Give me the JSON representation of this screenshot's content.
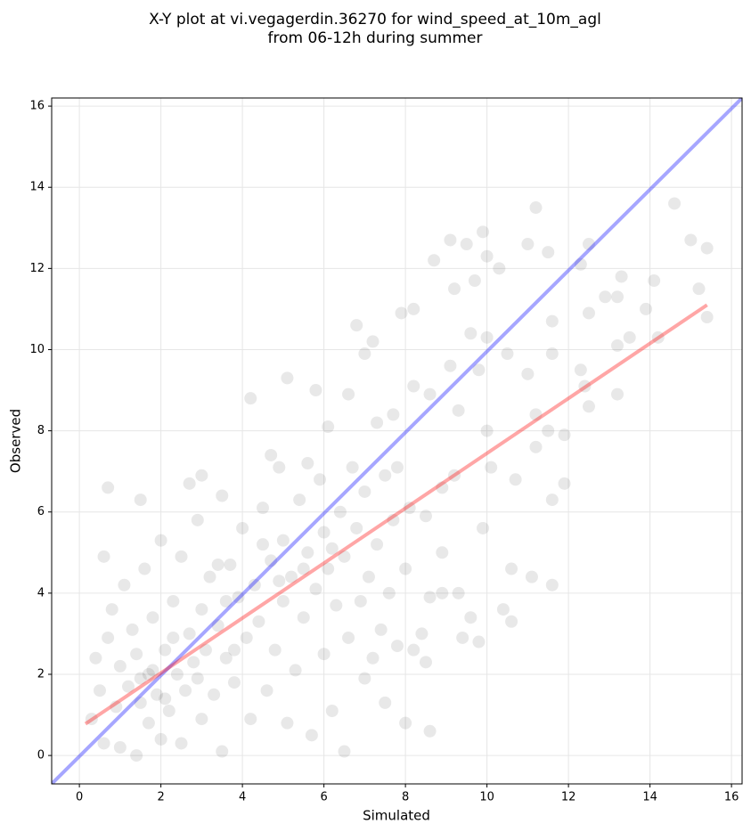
{
  "chart_data": {
    "type": "scatter",
    "title": [
      "X-Y plot at vi.vegagerdin.36270 for wind_speed_at_10m_agl",
      "from 06-12h during summer"
    ],
    "xlabel": "Simulated",
    "ylabel": "Observed",
    "xlim": [
      -0.68,
      16.26
    ],
    "ylim": [
      -0.7,
      16.2
    ],
    "xticks": [
      0,
      2,
      4,
      6,
      8,
      10,
      12,
      14,
      16
    ],
    "yticks": [
      0,
      2,
      4,
      6,
      8,
      10,
      12,
      14,
      16
    ],
    "grid": true,
    "point_color": "#000000",
    "point_alpha": 0.09,
    "x": [
      0.7,
      1.5,
      0.6,
      4.2,
      5.1,
      5.8,
      6.8,
      7.2,
      7.9,
      8.2,
      8.7,
      9.1,
      9.5,
      9.9,
      10.0,
      10.3,
      11.0,
      11.2,
      11.5,
      12.5,
      14.6,
      15.0,
      15.4,
      15.2,
      14.1,
      13.3,
      12.3,
      12.9,
      12.5,
      13.2,
      13.9,
      14.2,
      13.5,
      13.2,
      12.3,
      12.4,
      12.5,
      13.2,
      11.6,
      11.0,
      11.6,
      11.2,
      11.5,
      11.9,
      11.2,
      11.6,
      11.9,
      11.6,
      11.1,
      10.6,
      10.6,
      10.4,
      9.8,
      9.4,
      9.6,
      9.9,
      10.1,
      10.7,
      10.0,
      9.8,
      9.1,
      9.3,
      8.6,
      8.2,
      7.7,
      7.3,
      7.8,
      8.9,
      9.2,
      8.5,
      8.9,
      8.6,
      8.4,
      8.5,
      8.0,
      8.6,
      8.2,
      8.9,
      9.3,
      15.4,
      10.5,
      9.7,
      9.2,
      10.0,
      9.6,
      0.3,
      0.4,
      0.5,
      0.6,
      0.7,
      0.8,
      0.9,
      1.0,
      1.0,
      1.1,
      1.2,
      1.3,
      1.4,
      1.4,
      1.5,
      1.6,
      1.7,
      1.7,
      1.8,
      1.9,
      2.0,
      2.0,
      2.1,
      2.2,
      2.3,
      2.4,
      2.5,
      2.5,
      2.6,
      2.7,
      2.8,
      2.9,
      3.0,
      3.0,
      3.1,
      3.2,
      3.3,
      3.4,
      3.5,
      3.5,
      3.6,
      3.7,
      3.8,
      3.9,
      4.0,
      4.1,
      4.2,
      4.3,
      4.4,
      4.5,
      4.6,
      4.7,
      4.8,
      4.9,
      5.0,
      5.0,
      5.1,
      5.2,
      5.3,
      5.4,
      5.5,
      5.6,
      5.7,
      5.8,
      5.9,
      6.0,
      6.0,
      6.1,
      6.2,
      6.3,
      6.4,
      6.5,
      6.5,
      6.6,
      6.7,
      6.8,
      6.9,
      7.0,
      7.0,
      7.1,
      7.2,
      7.3,
      7.4,
      7.5,
      7.5,
      7.6,
      7.7,
      7.8,
      8.0,
      8.1,
      3.0,
      2.7,
      4.7,
      5.6,
      6.1,
      6.6,
      7.0,
      4.5,
      3.4,
      2.3,
      1.8,
      2.9,
      3.8,
      4.9,
      5.5,
      6.2,
      1.5,
      2.1,
      3.6
    ],
    "y": [
      6.6,
      6.3,
      4.9,
      8.8,
      9.3,
      9.0,
      10.6,
      10.2,
      10.9,
      11.0,
      12.2,
      12.7,
      12.6,
      12.9,
      12.3,
      12.0,
      12.6,
      13.5,
      12.4,
      12.6,
      13.6,
      12.7,
      12.5,
      11.5,
      11.7,
      11.8,
      12.1,
      11.3,
      10.9,
      11.3,
      11.0,
      10.3,
      10.3,
      10.1,
      9.5,
      9.1,
      8.6,
      8.9,
      10.7,
      9.4,
      9.9,
      8.4,
      8.0,
      7.9,
      7.6,
      6.3,
      6.7,
      4.2,
      4.4,
      4.6,
      3.3,
      3.6,
      2.8,
      2.9,
      3.4,
      5.6,
      7.1,
      6.8,
      8.0,
      9.5,
      9.6,
      8.5,
      8.9,
      9.1,
      8.4,
      8.2,
      7.1,
      6.6,
      6.9,
      5.9,
      5.0,
      3.9,
      3.0,
      2.3,
      0.8,
      0.6,
      2.6,
      4.0,
      4.0,
      10.8,
      9.9,
      11.7,
      11.5,
      10.3,
      10.4,
      0.9,
      2.4,
      1.6,
      0.3,
      2.9,
      3.6,
      1.2,
      0.2,
      2.2,
      4.2,
      1.7,
      3.1,
      0.0,
      2.5,
      1.3,
      4.6,
      0.8,
      2.0,
      3.4,
      1.5,
      5.3,
      0.4,
      2.6,
      1.1,
      3.8,
      2.0,
      4.9,
      0.3,
      1.6,
      3.0,
      2.3,
      5.8,
      0.9,
      3.6,
      2.6,
      4.4,
      1.5,
      3.2,
      6.4,
      0.1,
      2.4,
      4.7,
      1.8,
      3.9,
      5.6,
      2.9,
      0.9,
      4.2,
      3.3,
      6.1,
      1.6,
      4.8,
      2.6,
      7.1,
      3.8,
      5.3,
      0.8,
      4.4,
      2.1,
      6.3,
      3.4,
      5.0,
      0.5,
      4.1,
      6.8,
      2.5,
      5.5,
      4.6,
      1.1,
      3.7,
      6.0,
      0.1,
      4.9,
      2.9,
      7.1,
      5.6,
      3.8,
      1.9,
      6.5,
      4.4,
      2.4,
      5.2,
      3.1,
      1.3,
      6.9,
      4.0,
      5.8,
      2.7,
      4.6,
      6.1,
      6.9,
      6.7,
      7.4,
      7.2,
      8.1,
      8.9,
      9.9,
      5.2,
      4.7,
      2.9,
      2.1,
      1.9,
      2.6,
      4.3,
      4.6,
      5.1,
      1.9,
      1.4,
      3.8
    ],
    "lines": [
      {
        "color": "#0000ff",
        "alpha": 0.35,
        "x": [
          -0.68,
          16.26
        ],
        "y": [
          -0.7,
          16.2
        ]
      },
      {
        "color": "#ff0000",
        "alpha": 0.35,
        "x": [
          0.15,
          15.4
        ],
        "y": [
          0.78,
          11.1
        ]
      }
    ]
  }
}
